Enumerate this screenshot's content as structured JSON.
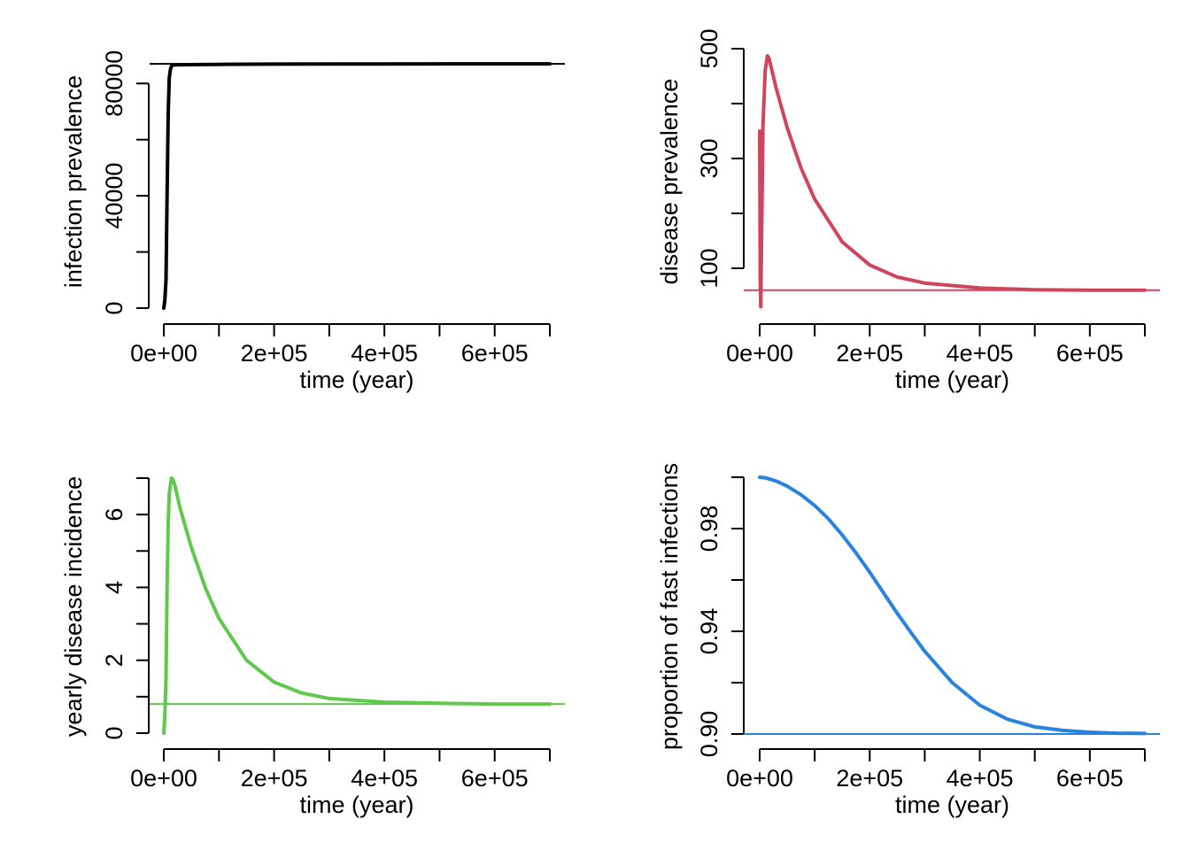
{
  "chart_data": [
    {
      "type": "line",
      "xlabel": "time (year)",
      "ylabel": "infection prevalence",
      "color": "#000000",
      "xlim": [
        0,
        700000
      ],
      "ylim": [
        0,
        84500
      ],
      "xticks": [
        0,
        100000,
        200000,
        300000,
        400000,
        500000,
        600000,
        700000
      ],
      "xtick_labels": [
        "0e+00",
        "2e+05",
        "4e+05",
        "6e+05"
      ],
      "xtick_label_values": [
        0,
        200000,
        400000,
        600000
      ],
      "yticks": [
        0,
        20000,
        40000,
        60000,
        80000
      ],
      "ytick_labels": [
        "0",
        "40000",
        "80000"
      ],
      "ytick_label_values": [
        0,
        40000,
        80000
      ],
      "reference_y": 87000,
      "series": [
        {
          "x": [
            0,
            2000,
            4000,
            6000,
            8000,
            10000,
            12000,
            14000,
            16000,
            20000,
            50000,
            100000,
            200000,
            400000,
            600000,
            700000
          ],
          "y": [
            0,
            3000,
            10000,
            40000,
            70000,
            82000,
            85000,
            86200,
            86500,
            86600,
            86700,
            86800,
            86900,
            86950,
            87000,
            87000
          ]
        }
      ]
    },
    {
      "type": "line",
      "xlabel": "time (year)",
      "ylabel": "disease prevalence",
      "color": "#d0455e",
      "xlim": [
        0,
        700000
      ],
      "ylim": [
        100,
        500
      ],
      "xticks": [
        0,
        100000,
        200000,
        300000,
        400000,
        500000,
        600000,
        700000
      ],
      "xtick_labels": [
        "0e+00",
        "2e+05",
        "4e+05",
        "6e+05"
      ],
      "xtick_label_values": [
        0,
        200000,
        400000,
        600000
      ],
      "yticks": [
        100,
        200,
        300,
        400,
        500
      ],
      "ytick_labels": [
        "100",
        "300",
        "500"
      ],
      "ytick_label_values": [
        100,
        300,
        500
      ],
      "reference_y": 60,
      "series": [
        {
          "x": [
            0,
            1000,
            2000,
            4000,
            6000,
            10000,
            14000,
            17000,
            20000,
            30000,
            50000,
            75000,
            100000,
            150000,
            200000,
            250000,
            300000,
            400000,
            500000,
            600000,
            700000
          ],
          "y": [
            350,
            80,
            30,
            200,
            360,
            460,
            487,
            482,
            470,
            428,
            356,
            283,
            226,
            148,
            106,
            84,
            73,
            64,
            61,
            60,
            60
          ]
        }
      ]
    },
    {
      "type": "line",
      "xlabel": "time (year)",
      "ylabel": "yearly disease incidence",
      "color": "#60c84c",
      "xlim": [
        0,
        700000
      ],
      "ylim": [
        0,
        7
      ],
      "xticks": [
        0,
        100000,
        200000,
        300000,
        400000,
        500000,
        600000,
        700000
      ],
      "xtick_labels": [
        "0e+00",
        "2e+05",
        "4e+05",
        "6e+05"
      ],
      "xtick_label_values": [
        0,
        200000,
        400000,
        600000
      ],
      "yticks": [
        0,
        1,
        2,
        3,
        4,
        5,
        6,
        7
      ],
      "ytick_labels": [
        "0",
        "2",
        "4",
        "6"
      ],
      "ytick_label_values": [
        0,
        2,
        4,
        6
      ],
      "reference_y": 0.8,
      "series": [
        {
          "x": [
            0,
            2000,
            4000,
            6000,
            8000,
            10000,
            14000,
            17000,
            20000,
            30000,
            50000,
            75000,
            100000,
            150000,
            200000,
            250000,
            300000,
            400000,
            500000,
            600000,
            700000
          ],
          "y": [
            0,
            0.5,
            1.5,
            4.0,
            5.8,
            6.6,
            7.0,
            6.95,
            6.8,
            6.15,
            5.1,
            4.0,
            3.15,
            2.0,
            1.4,
            1.1,
            0.95,
            0.85,
            0.82,
            0.8,
            0.8
          ]
        }
      ]
    },
    {
      "type": "line",
      "xlabel": "time (year)",
      "ylabel": "proportion of fast infections",
      "color": "#2882e0",
      "xlim": [
        0,
        700000
      ],
      "ylim": [
        0.9,
        1.0
      ],
      "xticks": [
        0,
        100000,
        200000,
        300000,
        400000,
        500000,
        600000,
        700000
      ],
      "xtick_labels": [
        "0e+00",
        "2e+05",
        "4e+05",
        "6e+05"
      ],
      "xtick_label_values": [
        0,
        200000,
        400000,
        600000
      ],
      "yticks": [
        0.9,
        0.92,
        0.94,
        0.96,
        0.98,
        1.0
      ],
      "ytick_labels": [
        "0.90",
        "0.94",
        "0.98"
      ],
      "ytick_label_values": [
        0.9,
        0.94,
        0.98
      ],
      "reference_y": 0.9,
      "series": [
        {
          "x": [
            0,
            10000,
            30000,
            50000,
            75000,
            100000,
            125000,
            150000,
            175000,
            200000,
            225000,
            250000,
            275000,
            300000,
            350000,
            400000,
            450000,
            500000,
            550000,
            600000,
            650000,
            700000
          ],
          "y": [
            1.0,
            0.9998,
            0.9985,
            0.9965,
            0.9932,
            0.989,
            0.9838,
            0.9775,
            0.9705,
            0.963,
            0.955,
            0.947,
            0.9395,
            0.9322,
            0.92,
            0.9112,
            0.9058,
            0.9028,
            0.9014,
            0.9007,
            0.9003,
            0.9002
          ]
        }
      ]
    }
  ]
}
